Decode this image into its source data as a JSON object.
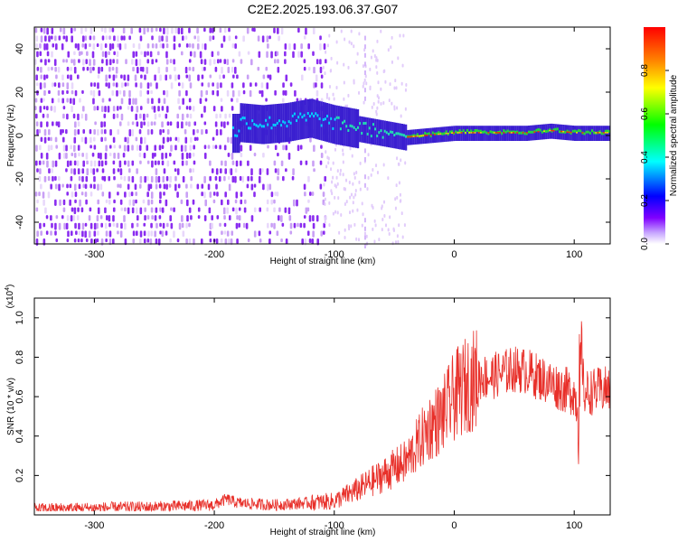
{
  "title": "C2E2.2025.193.06.37.G07",
  "chart_data": [
    {
      "type": "heatmap",
      "xlabel": "Height of straight line (km)",
      "ylabel": "Frequency (Hz)",
      "xlim": [
        -350,
        130
      ],
      "ylim": [
        -50,
        50
      ],
      "x_ticks": [
        "-300",
        "-200",
        "-100",
        "0",
        "100"
      ],
      "y_ticks": [
        "-40",
        "-20",
        "0",
        "20",
        "40"
      ],
      "colorbar": {
        "label": "Normalized spectral amplitude",
        "ticks": [
          "0.0",
          "0.2",
          "0.4",
          "0.6",
          "0.8"
        ],
        "range": [
          0,
          1
        ],
        "colors": [
          "#ffffff",
          "#8000ff",
          "#0000ff",
          "#00ffff",
          "#00ff00",
          "#ffff00",
          "#ff8000",
          "#ff0000"
        ]
      },
      "ridge": {
        "x": [
          -180,
          -160,
          -140,
          -120,
          -100,
          -80,
          -60,
          -40,
          -20,
          0,
          20,
          40,
          60,
          80,
          100,
          130
        ],
        "y": [
          6,
          5,
          6,
          8,
          5,
          3,
          1,
          -1,
          0,
          1,
          1,
          1,
          1,
          2,
          1,
          1
        ]
      },
      "grid": false
    },
    {
      "type": "line",
      "xlabel": "Height of straight line (km)",
      "ylabel": "SNR (10 * v/v)",
      "multiplier": "(x10",
      "multiplier_exp": "4",
      "xlim": [
        -350,
        130
      ],
      "ylim": [
        0,
        1.1
      ],
      "x_ticks": [
        "-300",
        "-200",
        "-100",
        "0",
        "100"
      ],
      "y_ticks": [
        "0.2",
        "0.4",
        "0.6",
        "0.8",
        "1.0"
      ],
      "color": "#e8302a",
      "series_envelope": {
        "x": [
          -350,
          -250,
          -200,
          -190,
          -180,
          -150,
          -100,
          -80,
          -60,
          -40,
          -30,
          -20,
          -10,
          0,
          10,
          20,
          30,
          40,
          50,
          60,
          70,
          80,
          90,
          100,
          104,
          106,
          108,
          110,
          120,
          130
        ],
        "y": [
          0.03,
          0.04,
          0.05,
          0.08,
          0.06,
          0.05,
          0.07,
          0.13,
          0.2,
          0.27,
          0.36,
          0.45,
          0.5,
          0.6,
          0.66,
          0.7,
          0.7,
          0.72,
          0.74,
          0.73,
          0.7,
          0.67,
          0.64,
          0.62,
          0.5,
          0.9,
          0.62,
          0.62,
          0.63,
          0.64
        ]
      },
      "grid": false
    }
  ]
}
